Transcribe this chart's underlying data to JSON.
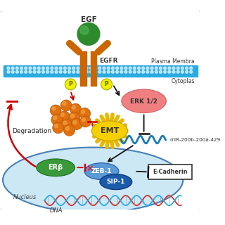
{
  "bg_color": "#ffffff",
  "border_color": "#4a7fb5",
  "membrane_color": "#29abe2",
  "nucleus_color": "#cce8f5",
  "nucleus_border": "#4a7fb5",
  "egf_color": "#2d8a2d",
  "egfr_color": "#cc6600",
  "phospho_color": "#f0f000",
  "erk_color": "#f08080",
  "emt_color": "#f5d000",
  "emt_spike_color": "#e8b800",
  "erb_color": "#3a9a3a",
  "zeb1_color": "#5b9bd5",
  "sip1_color": "#1a5baa",
  "ecad_fill": "#ffffff",
  "ecad_border": "#333333",
  "mir_color": "#1a7ab5",
  "dna_color1": "#cc3333",
  "dna_color2": "#29abe2",
  "ball_color": "#e07010",
  "arrow_red": "#cc0000",
  "arrow_black": "#111111",
  "labels": {
    "egf": "EGF",
    "egfr": "EGFR",
    "erk": "ERK 1/2",
    "emt": "EMT",
    "erb": "ERβ",
    "zeb1": "ZEB-1",
    "sip1": "SIP-1",
    "ecad": "E-Cadherin",
    "mir": "miR-200b-200a-429",
    "degradation": "Degradation",
    "plasma": "Plasma Membra",
    "cyto": "Cytoplas",
    "nucleus": "Nucleus",
    "dna": "DNA",
    "p": "P"
  }
}
